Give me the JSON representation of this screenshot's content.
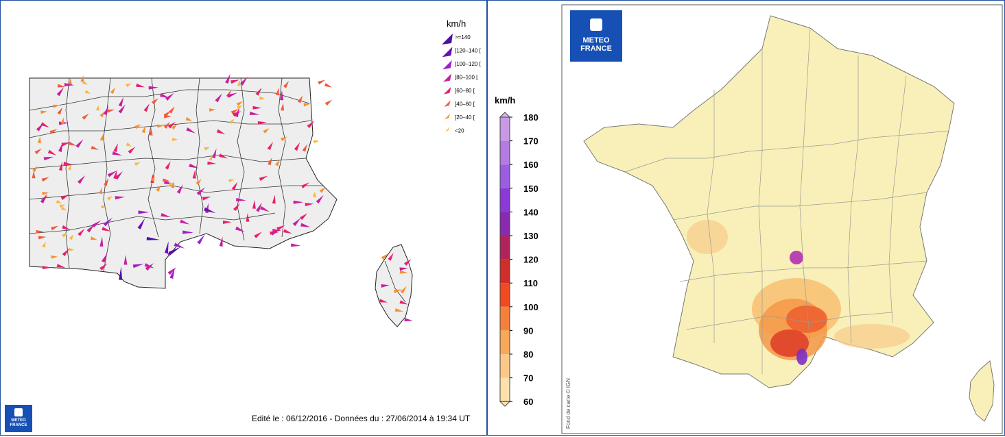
{
  "left_panel": {
    "legend": {
      "unit": "km/h",
      "classes": [
        {
          "label": ">=140",
          "color": "#4b0fa0"
        },
        {
          "label": "[120–140 [",
          "color": "#6a0fb4"
        },
        {
          "label": "[100–120 [",
          "color": "#9c1fc8"
        },
        {
          "label": "[80–100 [",
          "color": "#c81ea0"
        },
        {
          "label": "[60–80 [",
          "color": "#e8206e"
        },
        {
          "label": "[40–60 [",
          "color": "#f05a3c"
        },
        {
          "label": "[20–40 [",
          "color": "#f5902e"
        },
        {
          "label": "<20",
          "color": "#f7b840"
        }
      ]
    },
    "footer_note": "Edité le : 06/12/2016 - Données du : 27/06/2014 à 19:34 UT",
    "logo_text": [
      "METEO",
      "FRANCE"
    ]
  },
  "right_panel": {
    "colorbar": {
      "unit": "km/h",
      "ticks": [
        "180",
        "170",
        "160",
        "150",
        "140",
        "130",
        "120",
        "110",
        "100",
        "90",
        "80",
        "70",
        "60"
      ],
      "colors": [
        "#d8b8ee",
        "#c89ae6",
        "#b27ce0",
        "#9a5ee0",
        "#8a3ad8",
        "#8a2ab0",
        "#b0245a",
        "#d02e2a",
        "#f04a20",
        "#f5803a",
        "#f8a858",
        "#fbc888",
        "#fde0aa"
      ]
    },
    "logo_text": [
      "METEO",
      "FRANCE"
    ],
    "map_credit": "Fond de carte © IGN"
  }
}
